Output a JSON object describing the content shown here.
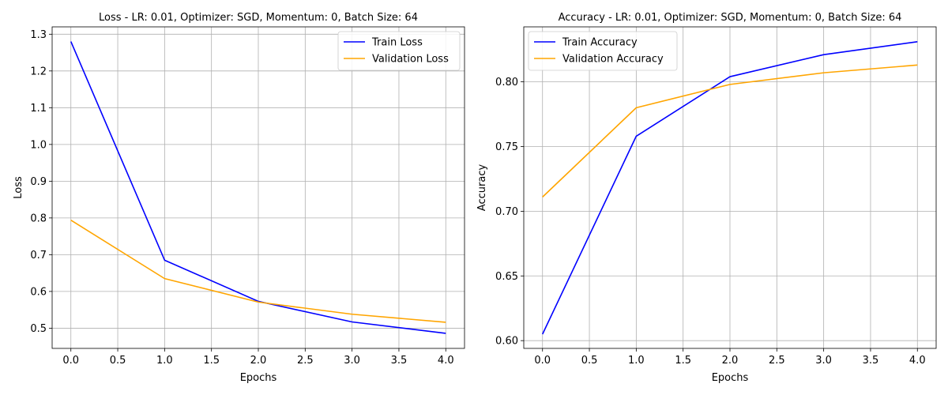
{
  "chart_data": [
    {
      "type": "line",
      "title": "Loss - LR: 0.01, Optimizer: SGD, Momentum: 0, Batch Size: 64",
      "xlabel": "Epochs",
      "ylabel": "Loss",
      "x": [
        0,
        1,
        2,
        3,
        4
      ],
      "xlim": [
        -0.2,
        4.2
      ],
      "ylim": [
        0.445,
        1.32
      ],
      "xticks": [
        "0.0",
        "0.5",
        "1.0",
        "1.5",
        "2.0",
        "2.5",
        "3.0",
        "3.5",
        "4.0"
      ],
      "yticks": [
        "0.5",
        "0.6",
        "0.7",
        "0.8",
        "0.9",
        "1.0",
        "1.1",
        "1.2",
        "1.3"
      ],
      "grid": true,
      "legend": "top-right",
      "series": [
        {
          "name": "Train Loss",
          "color": "#0000ff",
          "values": [
            1.28,
            0.685,
            0.573,
            0.517,
            0.486
          ]
        },
        {
          "name": "Validation Loss",
          "color": "#ffa500",
          "values": [
            0.794,
            0.635,
            0.571,
            0.538,
            0.516
          ]
        }
      ]
    },
    {
      "type": "line",
      "title": "Accuracy - LR: 0.01, Optimizer: SGD, Momentum: 0, Batch Size: 64",
      "xlabel": "Epochs",
      "ylabel": "Accuracy",
      "x": [
        0,
        1,
        2,
        3,
        4
      ],
      "xlim": [
        -0.2,
        4.2
      ],
      "ylim": [
        0.594,
        0.8425
      ],
      "xticks": [
        "0.0",
        "0.5",
        "1.0",
        "1.5",
        "2.0",
        "2.5",
        "3.0",
        "3.5",
        "4.0"
      ],
      "yticks": [
        "0.60",
        "0.65",
        "0.70",
        "0.75",
        "0.80"
      ],
      "grid": true,
      "legend": "top-left",
      "series": [
        {
          "name": "Train Accuracy",
          "color": "#0000ff",
          "values": [
            0.605,
            0.758,
            0.804,
            0.821,
            0.831
          ]
        },
        {
          "name": "Validation Accuracy",
          "color": "#ffa500",
          "values": [
            0.711,
            0.78,
            0.798,
            0.807,
            0.813
          ]
        }
      ]
    }
  ]
}
